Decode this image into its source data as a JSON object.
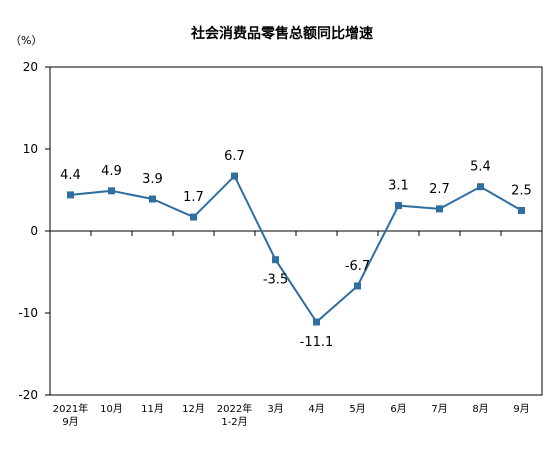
{
  "chart_data": {
    "type": "line",
    "title": "社会消费品零售总额同比增速",
    "unit_label": "（%）",
    "categories": [
      [
        "2021年",
        "9月"
      ],
      [
        "10月"
      ],
      [
        "11月"
      ],
      [
        "12月"
      ],
      [
        "2022年",
        "1-2月"
      ],
      [
        "3月"
      ],
      [
        "4月"
      ],
      [
        "5月"
      ],
      [
        "6月"
      ],
      [
        "7月"
      ],
      [
        "8月"
      ],
      [
        "9月"
      ]
    ],
    "values": [
      4.4,
      4.9,
      3.9,
      1.7,
      6.7,
      -3.5,
      -11.1,
      -6.7,
      3.1,
      2.7,
      5.4,
      2.5
    ],
    "data_labels": [
      "4.4",
      "4.9",
      "3.9",
      "1.7",
      "6.7",
      "-3.5",
      "-11.1",
      "-6.7",
      "3.1",
      "2.7",
      "5.4",
      "2.5"
    ],
    "yticks": [
      20,
      10,
      0,
      -10,
      -20
    ],
    "ylim": [
      -20,
      20
    ],
    "grid": false,
    "legend": "none",
    "line_color": "#2E6FA0",
    "marker": "square"
  }
}
